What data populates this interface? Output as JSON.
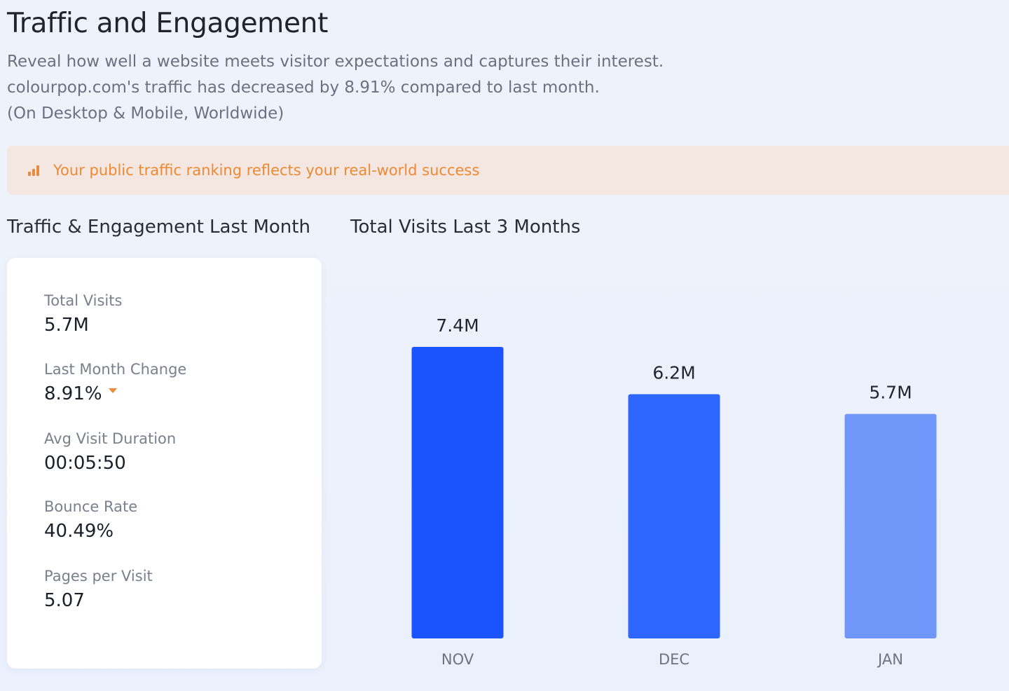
{
  "header": {
    "title": "Traffic and Engagement",
    "description_lines": [
      "Reveal how well a website meets visitor expectations and captures their interest.",
      "colourpop.com's traffic has decreased by 8.91% compared to last month.",
      "(On Desktop & Mobile, Worldwide)"
    ]
  },
  "banner": {
    "icon": "bar-chart-icon",
    "text": "Your public traffic ranking reflects your real-world success",
    "color": "#ec8a33"
  },
  "left_section": {
    "title": "Traffic & Engagement Last Month",
    "metrics": [
      {
        "label": "Total Visits",
        "value": "5.7M"
      },
      {
        "label": "Last Month Change",
        "value": "8.91%",
        "trend": "down"
      },
      {
        "label": "Avg Visit Duration",
        "value": "00:05:50"
      },
      {
        "label": "Bounce Rate",
        "value": "40.49%"
      },
      {
        "label": "Pages per Visit",
        "value": "5.07"
      }
    ]
  },
  "right_section": {
    "title": "Total Visits Last 3 Months"
  },
  "chart_data": {
    "type": "bar",
    "title": "Total Visits Last 3 Months",
    "categories": [
      "NOV",
      "DEC",
      "JAN"
    ],
    "values": [
      7.4,
      6.2,
      5.7
    ],
    "data_labels": [
      "7.4M",
      "6.2M",
      "5.7M"
    ],
    "unit": "M",
    "colors": [
      "#1a53ff",
      "#2f66ff",
      "#6f96f8"
    ],
    "xlabel": "",
    "ylabel": "",
    "ylim": [
      0,
      7.4
    ],
    "grid": false
  }
}
